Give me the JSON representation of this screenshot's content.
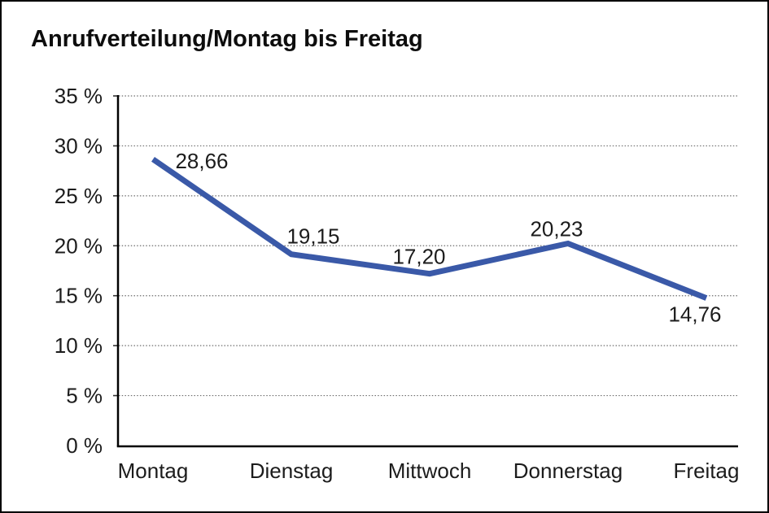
{
  "window": {
    "background_color": "#ffffff",
    "border_color": "#000000"
  },
  "chart_data": {
    "type": "line",
    "title": "Anrufverteilung/Montag bis Freitag",
    "categories": [
      "Montag",
      "Dienstag",
      "Mittwoch",
      "Donnerstag",
      "Freitag"
    ],
    "series": [
      {
        "name": "Anrufverteilung",
        "values": [
          28.66,
          19.15,
          17.2,
          20.23,
          14.76
        ],
        "color": "#3A59A8"
      }
    ],
    "value_labels": [
      "28,66",
      "19,15",
      "17,20",
      "20,23",
      "14,76"
    ],
    "xlabel": "",
    "ylabel": "",
    "ylim": [
      0,
      35
    ],
    "y_tick_step": 5,
    "y_tick_values": [
      35,
      30,
      25,
      20,
      15,
      10,
      5,
      0
    ],
    "y_tick_labels": [
      "35 %",
      "30 %",
      "25 %",
      "20 %",
      "15 %",
      "10 %",
      "5 %",
      "0 %"
    ],
    "grid": "horizontal-dotted",
    "legend": "none",
    "line_width": 7,
    "grid_color": "#6e6e6e",
    "axis_color": "#000000",
    "text_color": "#1c1c1c"
  }
}
